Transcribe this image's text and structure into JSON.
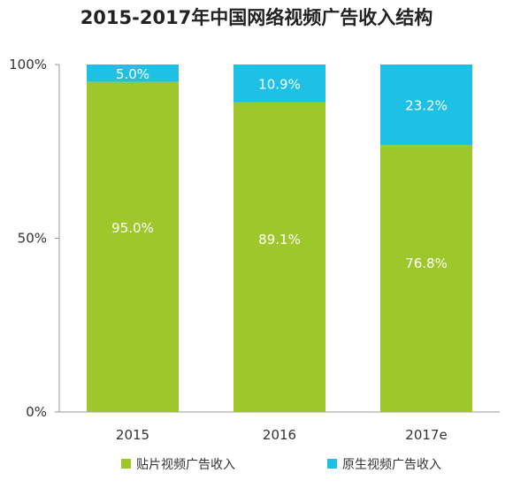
{
  "chart_data": {
    "type": "bar",
    "stacked": true,
    "title": "2015-2017年中国网络视频广告收入结构",
    "categories": [
      "2015",
      "2016",
      "2017e"
    ],
    "series": [
      {
        "name": "贴片视频广告收入",
        "values": [
          95.0,
          89.1,
          76.8
        ],
        "labels": [
          "95.0%",
          "89.1%",
          "76.8%"
        ],
        "color": "#9ec72b"
      },
      {
        "name": "原生视频广告收入",
        "values": [
          5.0,
          10.9,
          23.2
        ],
        "labels": [
          "5.0%",
          "10.9%",
          "23.2%"
        ],
        "color": "#1ec0e6"
      }
    ],
    "ylim": [
      0,
      100
    ],
    "yticks": [
      "0%",
      "50%",
      "100%"
    ],
    "grid": false,
    "legend": "bottom"
  }
}
